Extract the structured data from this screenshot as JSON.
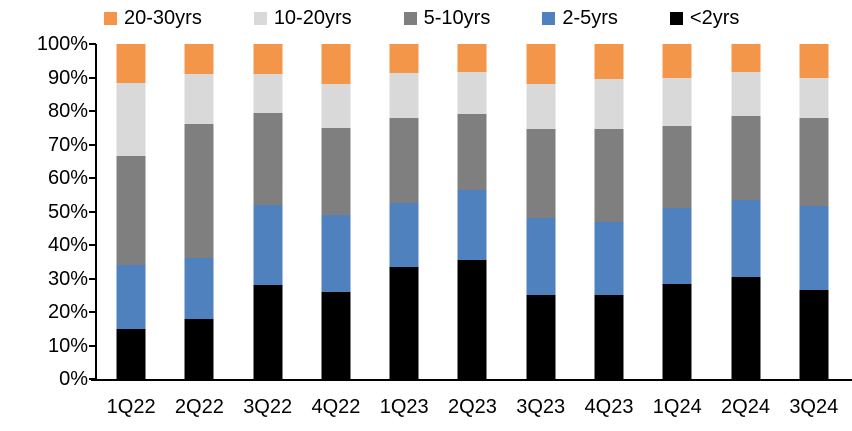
{
  "chart_data": {
    "type": "bar",
    "stacked": true,
    "orientation": "vertical",
    "title": "",
    "categories": [
      "1Q22",
      "2Q22",
      "3Q22",
      "4Q22",
      "1Q23",
      "2Q23",
      "3Q23",
      "4Q23",
      "1Q24",
      "2Q24",
      "3Q24"
    ],
    "series": [
      {
        "name": "<2yrs",
        "color": "#000000",
        "values": [
          15,
          18,
          28,
          26,
          33.5,
          35.5,
          25,
          25,
          28.5,
          30.5,
          26.5
        ]
      },
      {
        "name": "2-5yrs",
        "color": "#4E81BD",
        "values": [
          19,
          18,
          24,
          23,
          19,
          21,
          23,
          22,
          22.5,
          23,
          25
        ]
      },
      {
        "name": "5-10yrs",
        "color": "#7F7F7F",
        "values": [
          32.5,
          40,
          27.5,
          26,
          25.5,
          22.5,
          26.5,
          27.5,
          24.5,
          25,
          26.5
        ]
      },
      {
        "name": "10-20yrs",
        "color": "#D9D9D9",
        "values": [
          22,
          15,
          11.5,
          13,
          13.5,
          12.5,
          13.5,
          15,
          14.5,
          13,
          12
        ]
      },
      {
        "name": "20-30yrs",
        "color": "#F4964A",
        "values": [
          11.5,
          9,
          9,
          12,
          8.5,
          8.5,
          12,
          10.5,
          10,
          8.5,
          10
        ]
      }
    ],
    "legend": {
      "position": "top",
      "order": [
        "20-30yrs",
        "10-20yrs",
        "5-10yrs",
        "2-5yrs",
        "<2yrs"
      ]
    },
    "y_axis": {
      "min": 0,
      "max": 100,
      "tick_step": 10,
      "tick_labels": [
        "0%",
        "10%",
        "20%",
        "30%",
        "40%",
        "50%",
        "60%",
        "70%",
        "80%",
        "90%",
        "100%"
      ],
      "grid": false,
      "unit": "%"
    },
    "x_axis": {
      "label": ""
    }
  }
}
